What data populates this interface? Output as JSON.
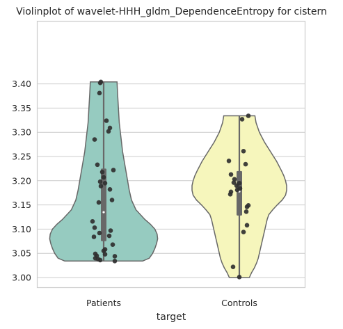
{
  "chart_data": {
    "type": "violin",
    "title": "Violinplot of wavelet-HHH_gldm_DependenceEntropy for cistern",
    "xlabel": "target",
    "ylabel": "",
    "ylim": [
      2.98,
      3.42
    ],
    "yticks": [
      3.0,
      3.05,
      3.1,
      3.15,
      3.2,
      3.25,
      3.3,
      3.35,
      3.4
    ],
    "ytick_labels": [
      "3.00",
      "3.05",
      "3.10",
      "3.15",
      "3.20",
      "3.25",
      "3.30",
      "3.35",
      "3.40"
    ],
    "grid": true,
    "categories": [
      "Patients",
      "Controls"
    ],
    "series": [
      {
        "category": "Patients",
        "color": "#96cbc0",
        "min": 3.034,
        "q1": 3.075,
        "median": 3.135,
        "q3": 3.225,
        "max": 3.404,
        "density": [
          [
            3.034,
            0.7
          ],
          [
            3.04,
            0.82
          ],
          [
            3.05,
            0.88
          ],
          [
            3.06,
            0.92
          ],
          [
            3.07,
            0.95
          ],
          [
            3.08,
            0.97
          ],
          [
            3.09,
            0.96
          ],
          [
            3.1,
            0.92
          ],
          [
            3.11,
            0.84
          ],
          [
            3.12,
            0.74
          ],
          [
            3.14,
            0.58
          ],
          [
            3.16,
            0.5
          ],
          [
            3.18,
            0.46
          ],
          [
            3.2,
            0.43
          ],
          [
            3.22,
            0.4
          ],
          [
            3.24,
            0.37
          ],
          [
            3.26,
            0.34
          ],
          [
            3.28,
            0.32
          ],
          [
            3.3,
            0.3
          ],
          [
            3.32,
            0.28
          ],
          [
            3.34,
            0.27
          ],
          [
            3.36,
            0.26
          ],
          [
            3.38,
            0.25
          ],
          [
            3.404,
            0.24
          ]
        ],
        "points": [
          [
            -0.04,
            3.404
          ],
          [
            -0.05,
            3.402
          ],
          [
            -0.06,
            3.381
          ],
          [
            0.04,
            3.324
          ],
          [
            0.09,
            3.309
          ],
          [
            0.07,
            3.302
          ],
          [
            -0.13,
            3.285
          ],
          [
            -0.09,
            3.233
          ],
          [
            0.14,
            3.222
          ],
          [
            -0.02,
            3.218
          ],
          [
            0.0,
            3.207
          ],
          [
            -0.05,
            3.198
          ],
          [
            0.02,
            3.195
          ],
          [
            -0.04,
            3.189
          ],
          [
            0.09,
            3.182
          ],
          [
            0.12,
            3.16
          ],
          [
            -0.07,
            3.155
          ],
          [
            -0.16,
            3.116
          ],
          [
            -0.13,
            3.103
          ],
          [
            0.1,
            3.097
          ],
          [
            -0.06,
            3.092
          ],
          [
            0.08,
            3.086
          ],
          [
            -0.14,
            3.084
          ],
          [
            0.13,
            3.068
          ],
          [
            0.02,
            3.058
          ],
          [
            0.0,
            3.055
          ],
          [
            -0.12,
            3.049
          ],
          [
            0.02,
            3.048
          ],
          [
            -0.1,
            3.045
          ],
          [
            0.16,
            3.044
          ],
          [
            -0.12,
            3.04
          ],
          [
            -0.08,
            3.038
          ],
          [
            -0.05,
            3.036
          ],
          [
            0.16,
            3.034
          ]
        ]
      },
      {
        "category": "Controls",
        "color": "#f6f6bc",
        "min": 3.0,
        "q1": 3.128,
        "median": 3.178,
        "q3": 3.22,
        "max": 3.334,
        "density": [
          [
            3.0,
            0.18
          ],
          [
            3.01,
            0.22
          ],
          [
            3.02,
            0.27
          ],
          [
            3.03,
            0.31
          ],
          [
            3.04,
            0.34
          ],
          [
            3.06,
            0.38
          ],
          [
            3.08,
            0.42
          ],
          [
            3.1,
            0.46
          ],
          [
            3.12,
            0.5
          ],
          [
            3.13,
            0.53
          ],
          [
            3.14,
            0.6
          ],
          [
            3.15,
            0.68
          ],
          [
            3.16,
            0.77
          ],
          [
            3.17,
            0.83
          ],
          [
            3.18,
            0.85
          ],
          [
            3.19,
            0.85
          ],
          [
            3.2,
            0.83
          ],
          [
            3.21,
            0.8
          ],
          [
            3.22,
            0.76
          ],
          [
            3.24,
            0.67
          ],
          [
            3.26,
            0.56
          ],
          [
            3.28,
            0.45
          ],
          [
            3.3,
            0.36
          ],
          [
            3.32,
            0.3
          ],
          [
            3.334,
            0.28
          ]
        ],
        "points": [
          [
            0.13,
            3.334
          ],
          [
            0.04,
            3.327
          ],
          [
            0.06,
            3.261
          ],
          [
            -0.15,
            3.241
          ],
          [
            0.09,
            3.234
          ],
          [
            -0.12,
            3.213
          ],
          [
            -0.07,
            3.203
          ],
          [
            -0.08,
            3.196
          ],
          [
            0.0,
            3.195
          ],
          [
            -0.04,
            3.19
          ],
          [
            0.01,
            3.184
          ],
          [
            -0.03,
            3.181
          ],
          [
            -0.12,
            3.177
          ],
          [
            -0.13,
            3.172
          ],
          [
            0.13,
            3.149
          ],
          [
            0.11,
            3.146
          ],
          [
            0.1,
            3.136
          ],
          [
            0.11,
            3.108
          ],
          [
            0.06,
            3.094
          ],
          [
            -0.09,
            3.022
          ],
          [
            0.0,
            3.001
          ]
        ]
      }
    ]
  }
}
